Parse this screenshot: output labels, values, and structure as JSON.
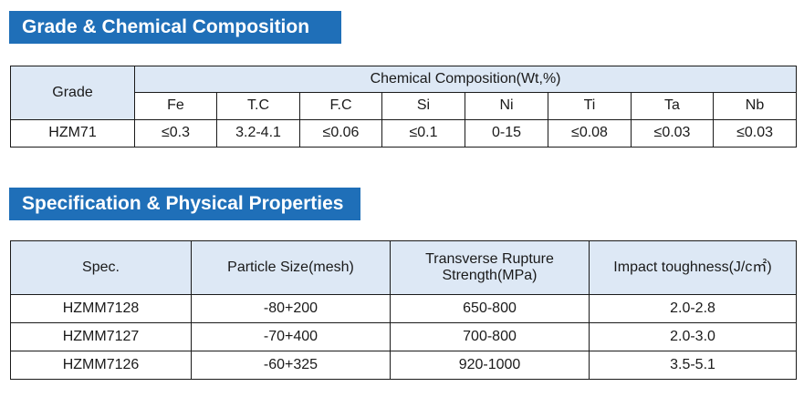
{
  "composition_section": {
    "title": "Grade & Chemical Composition",
    "grade_header": "Grade",
    "composition_header": "Chemical Composition(Wt,%)",
    "elements": [
      "Fe",
      "T.C",
      "F.C",
      "Si",
      "Ni",
      "Ti",
      "Ta",
      "Nb"
    ],
    "rows": [
      {
        "grade": "HZM71",
        "values": [
          "≤0.3",
          "3.2-4.1",
          "≤0.06",
          "≤0.1",
          "0-15",
          "≤0.08",
          "≤0.03",
          "≤0.03"
        ]
      }
    ]
  },
  "properties_section": {
    "title": "Specification & Physical Properties",
    "headers": {
      "spec": "Spec.",
      "particle_size": "Particle Size(mesh)",
      "trs_line1": "Transverse Rupture",
      "trs_line2": "Strength(MPa)",
      "impact": "Impact toughness(J/c㎡)"
    },
    "rows": [
      {
        "spec": "HZMM7128",
        "particle_size": "-80+200",
        "trs": "650-800",
        "impact": "2.0-2.8"
      },
      {
        "spec": "HZMM7127",
        "particle_size": "-70+400",
        "trs": "700-800",
        "impact": "2.0-3.0"
      },
      {
        "spec": "HZMM7126",
        "particle_size": "-60+325",
        "trs": "920-1000",
        "impact": "3.5-5.1"
      }
    ]
  }
}
